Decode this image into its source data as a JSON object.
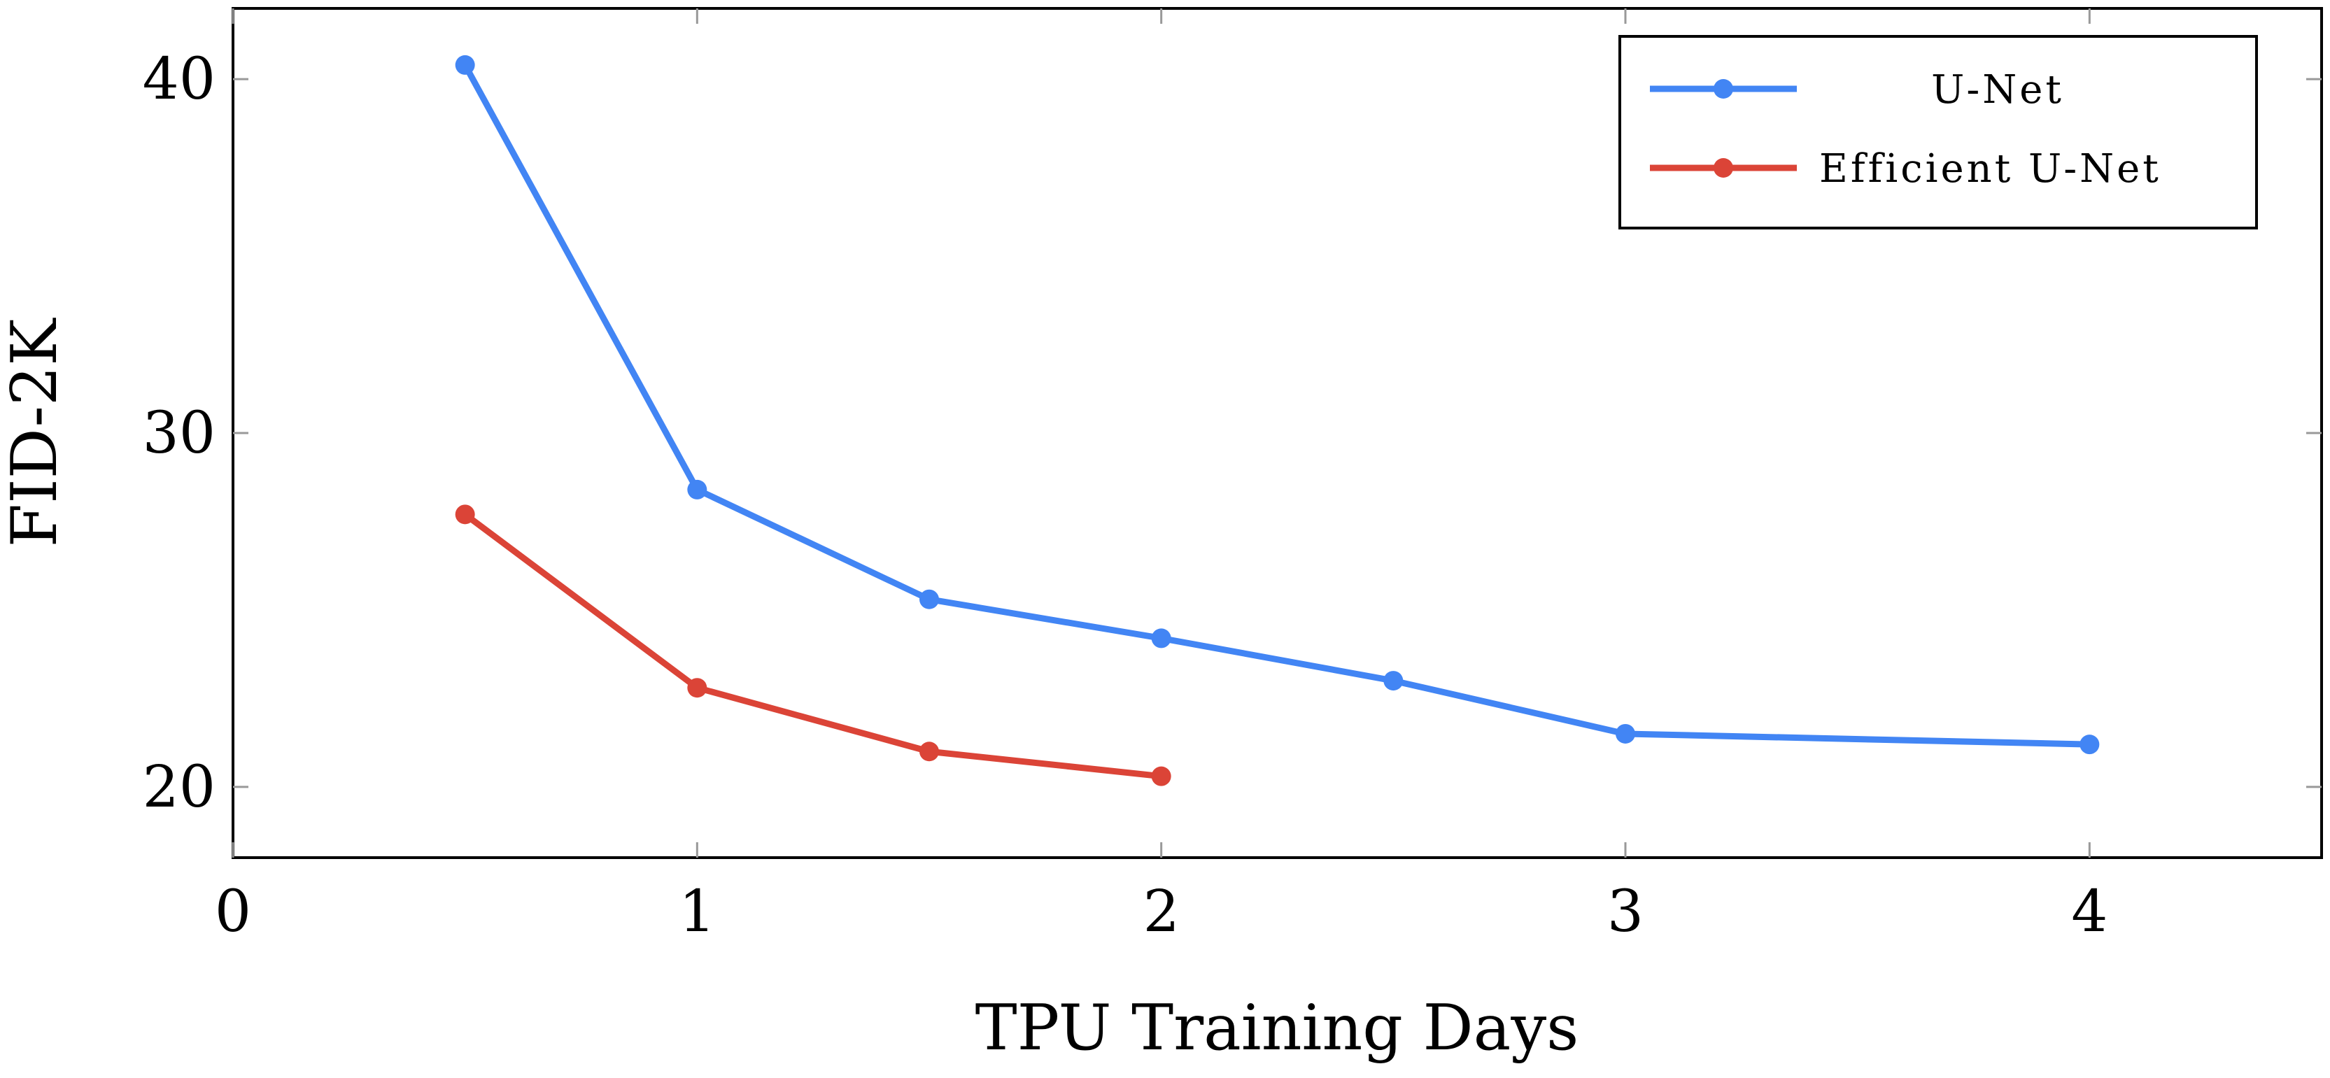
{
  "chart_data": {
    "type": "line",
    "xlabel": "TPU Training Days",
    "ylabel": "FID-2K",
    "xlim": [
      0,
      4.5
    ],
    "ylim": [
      18,
      42
    ],
    "x_ticks": [
      0,
      1,
      2,
      3,
      4
    ],
    "x_tick_labels": [
      "0",
      "1",
      "2",
      "3",
      "4"
    ],
    "y_ticks": [
      20,
      30,
      40
    ],
    "y_tick_labels": [
      "20",
      "30",
      "40"
    ],
    "grid": false,
    "legend_position": "top-right",
    "series": [
      {
        "name": "U-Net",
        "color": "#4285f4",
        "x": [
          0.5,
          1.0,
          1.5,
          2.0,
          2.5,
          3.0,
          4.0
        ],
        "y": [
          40.4,
          28.4,
          25.3,
          24.2,
          23.0,
          21.5,
          21.2
        ]
      },
      {
        "name": "Efficient U-Net",
        "color": "#db4437",
        "x": [
          0.5,
          1.0,
          1.5,
          2.0
        ],
        "y": [
          27.7,
          22.8,
          21.0,
          20.3
        ]
      }
    ]
  }
}
